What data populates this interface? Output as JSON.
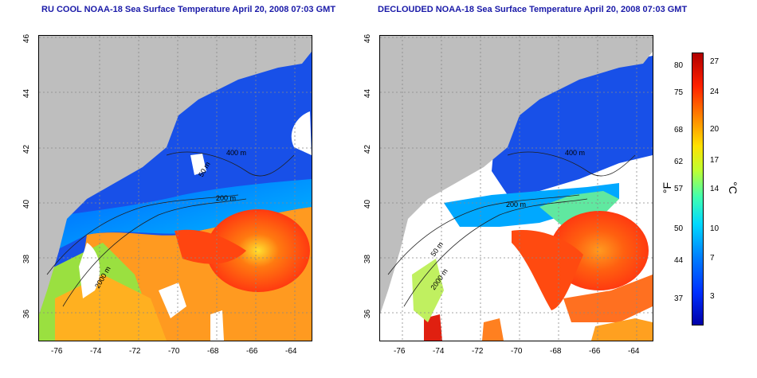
{
  "panels": [
    {
      "title": "RU COOL NOAA-18 Sea Surface Temperature April 20, 2008 07:03 GMT",
      "contour_labels": [
        "400 m",
        "200 m",
        "50 m",
        "2000 m"
      ]
    },
    {
      "title": "DECLOUDED NOAA-18 Sea Surface Temperature April 20, 2008 07:03 GMT",
      "contour_labels": [
        "400 m",
        "200 m",
        "2000 m",
        "50 m"
      ]
    }
  ],
  "axes": {
    "lon_ticks": [
      "-76",
      "-74",
      "-72",
      "-70",
      "-68",
      "-66",
      "-64"
    ],
    "lat_ticks": [
      "46",
      "44",
      "42",
      "40",
      "38",
      "36"
    ]
  },
  "colorbar": {
    "fahrenheit_label": "°F",
    "celsius_label": "°C",
    "fahrenheit_ticks": [
      "80",
      "75",
      "68",
      "62",
      "57",
      "50",
      "44",
      "37"
    ],
    "celsius_ticks": [
      "27",
      "24",
      "20",
      "17",
      "14",
      "10",
      "7",
      "3"
    ]
  },
  "colors": {
    "land": "#bebebe",
    "cold": "#1040e0",
    "warm": "#ff5010",
    "title": "#1a1aa8"
  }
}
